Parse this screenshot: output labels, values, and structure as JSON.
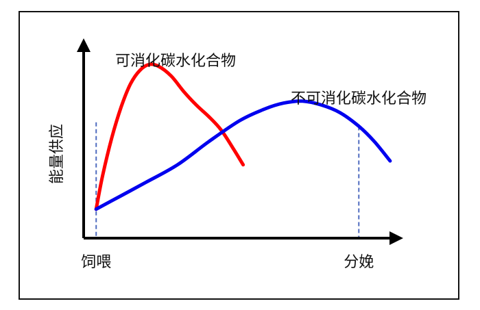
{
  "chart_data": {
    "type": "line",
    "ylabel": "能量供应",
    "x_tick_labels": [
      {
        "label": "饲喂",
        "x": 0.04
      },
      {
        "label": "分娩",
        "x": 0.88
      }
    ],
    "series": [
      {
        "name": "可消化碳水化合物",
        "color": "#ff0000",
        "points": [
          [
            0.04,
            0.15
          ],
          [
            0.06,
            0.32
          ],
          [
            0.09,
            0.52
          ],
          [
            0.12,
            0.68
          ],
          [
            0.15,
            0.8
          ],
          [
            0.18,
            0.87
          ],
          [
            0.21,
            0.9
          ],
          [
            0.24,
            0.89
          ],
          [
            0.28,
            0.84
          ],
          [
            0.32,
            0.76
          ],
          [
            0.36,
            0.69
          ],
          [
            0.4,
            0.63
          ],
          [
            0.44,
            0.56
          ],
          [
            0.48,
            0.46
          ],
          [
            0.51,
            0.38
          ]
        ]
      },
      {
        "name": "不可消化碳水化合物",
        "color": "#0000ee",
        "points": [
          [
            0.04,
            0.15
          ],
          [
            0.12,
            0.22
          ],
          [
            0.2,
            0.29
          ],
          [
            0.3,
            0.38
          ],
          [
            0.4,
            0.5
          ],
          [
            0.5,
            0.61
          ],
          [
            0.58,
            0.67
          ],
          [
            0.64,
            0.7
          ],
          [
            0.7,
            0.71
          ],
          [
            0.76,
            0.69
          ],
          [
            0.82,
            0.65
          ],
          [
            0.88,
            0.58
          ],
          [
            0.93,
            0.5
          ],
          [
            0.98,
            0.4
          ]
        ]
      }
    ],
    "reference_lines": [
      {
        "x": 0.04,
        "y_top": 0.6
      },
      {
        "x": 0.88,
        "y_top": 0.58
      }
    ],
    "xlim": [
      0,
      1
    ],
    "ylim": [
      0,
      1
    ],
    "grid": false,
    "axis_color": "#000000",
    "reference_line_color": "#4f6bbf"
  }
}
